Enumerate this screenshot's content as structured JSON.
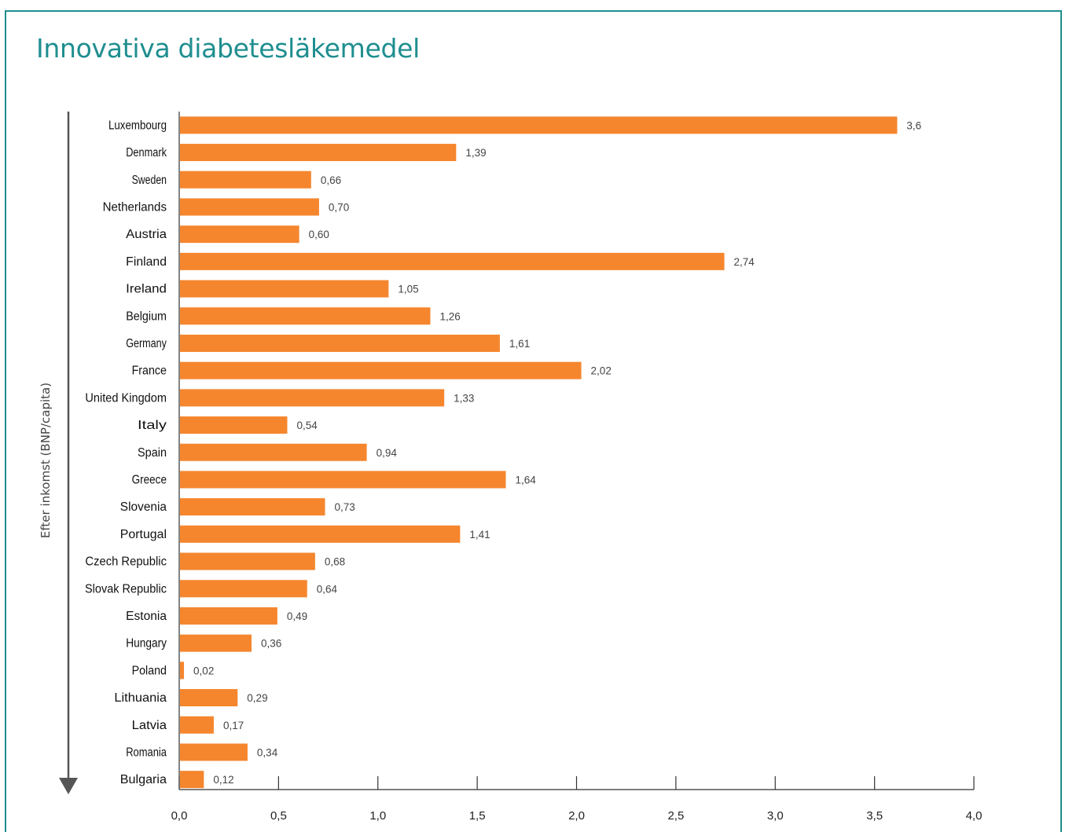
{
  "chart_data": {
    "type": "bar",
    "orientation": "horizontal",
    "title": "Innovativa diabetesläkemedel",
    "ylabel": "Efter inkomst (BNP/capita)",
    "xlabel": "",
    "xlim": [
      0,
      4
    ],
    "xticks": [
      "0,0",
      "0,5",
      "1,0",
      "1,5",
      "2,0",
      "2,5",
      "3,0",
      "3,5",
      "4,0"
    ],
    "xtick_values": [
      0,
      0.5,
      1.0,
      1.5,
      2.0,
      2.5,
      3.0,
      3.5,
      4.0
    ],
    "grid": false,
    "bar_color": "#f5862e",
    "categories": [
      "Luxembourg",
      "Denmark",
      "Sweden",
      "Netherlands",
      "Austria",
      "Finland",
      "Ireland",
      "Belgium",
      "Germany",
      "France",
      "United Kingdom",
      "Italy",
      "Spain",
      "Greece",
      "Slovenia",
      "Portugal",
      "Czech Republic",
      "Slovak Republic",
      "Estonia",
      "Hungary",
      "Poland",
      "Lithuania",
      "Latvia",
      "Romania",
      "Bulgaria"
    ],
    "values": [
      3.61,
      1.39,
      0.66,
      0.7,
      0.6,
      2.74,
      1.05,
      1.26,
      1.61,
      2.02,
      1.33,
      0.54,
      0.94,
      1.64,
      0.73,
      1.41,
      0.68,
      0.64,
      0.49,
      0.36,
      0.02,
      0.29,
      0.17,
      0.34,
      0.12
    ],
    "value_labels": [
      "3,6",
      "1,39",
      "0,66",
      "0,70",
      "0,60",
      "2,74",
      "1,05",
      "1,26",
      "1,61",
      "2,02",
      "1,33",
      "0,54",
      "0,94",
      "1,64",
      "0,73",
      "1,41",
      "0,68",
      "0,64",
      "0,49",
      "0,36",
      "0,02",
      "0,29",
      "0,17",
      "0,34",
      "0,12"
    ]
  },
  "colors": {
    "accent": "#1f8e90",
    "bar": "#f5862e",
    "axis": "#333333"
  }
}
